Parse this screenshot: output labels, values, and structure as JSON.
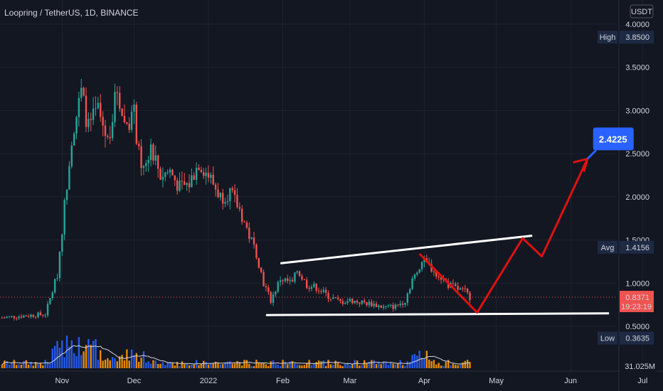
{
  "title": "Loopring / TetherUS, 1D, BINANCE",
  "currency": "USDT",
  "colors": {
    "background": "#131722",
    "up": "#26a69a",
    "down": "#ef5350",
    "volume_up": "#2962ff",
    "volume_down": "#ff9800",
    "pattern_lines": "#ffffff",
    "projection": "#e01010",
    "target_badge": "#2962ff",
    "price_badge": "#ef5350",
    "label_bg": "#1e2a44"
  },
  "chart_data": {
    "type": "candlestick",
    "symbol": "Loopring / TetherUS",
    "interval": "1D",
    "exchange": "BINANCE",
    "y_axis": {
      "unit": "USDT",
      "ylim": [
        0.2,
        4.2
      ],
      "ticks": [
        "4.0000",
        "3.5000",
        "3.0000",
        "2.5000",
        "2.0000",
        "1.5000",
        "1.0000",
        "0.5000"
      ],
      "tick_values": [
        4.0,
        3.5,
        3.0,
        2.5,
        2.0,
        1.5,
        1.0,
        0.5
      ]
    },
    "x_axis": {
      "ticks": [
        "Nov",
        "Dec",
        "2022",
        "Feb",
        "Mar",
        "Apr",
        "May",
        "Jun",
        "Jul"
      ],
      "tick_dates": [
        "2021-11-01",
        "2021-12-01",
        "2022-01-01",
        "2022-02-01",
        "2022-03-01",
        "2022-04-01",
        "2022-05-01",
        "2022-06-01",
        "2022-07-01"
      ],
      "range": [
        "2021-10-07",
        "2022-07-03"
      ]
    },
    "close_path": [
      [
        "2021-10-07",
        0.6
      ],
      [
        "2021-10-15",
        0.62
      ],
      [
        "2021-10-25",
        0.64
      ],
      [
        "2021-10-30",
        1.1
      ],
      [
        "2021-11-02",
        1.9
      ],
      [
        "2021-11-05",
        2.7
      ],
      [
        "2021-11-09",
        3.2
      ],
      [
        "2021-11-12",
        2.8
      ],
      [
        "2021-11-16",
        3.0
      ],
      [
        "2021-11-20",
        2.65
      ],
      [
        "2021-11-24",
        3.25
      ],
      [
        "2021-11-27",
        2.85
      ],
      [
        "2021-12-01",
        2.95
      ],
      [
        "2021-12-04",
        2.25
      ],
      [
        "2021-12-08",
        2.6
      ],
      [
        "2021-12-12",
        2.25
      ],
      [
        "2021-12-16",
        2.3
      ],
      [
        "2021-12-20",
        2.1
      ],
      [
        "2021-12-24",
        2.15
      ],
      [
        "2021-12-28",
        2.4
      ],
      [
        "2022-01-01",
        2.25
      ],
      [
        "2022-01-06",
        2.0
      ],
      [
        "2022-01-10",
        2.05
      ],
      [
        "2022-01-14",
        1.85
      ],
      [
        "2022-01-18",
        1.55
      ],
      [
        "2022-01-21",
        1.35
      ],
      [
        "2022-01-24",
        1.0
      ],
      [
        "2022-01-27",
        0.8
      ],
      [
        "2022-01-31",
        1.05
      ],
      [
        "2022-02-05",
        1.0
      ],
      [
        "2022-02-07",
        1.15
      ],
      [
        "2022-02-11",
        0.98
      ],
      [
        "2022-02-15",
        0.95
      ],
      [
        "2022-02-20",
        0.85
      ],
      [
        "2022-02-25",
        0.78
      ],
      [
        "2022-03-01",
        0.8
      ],
      [
        "2022-03-05",
        0.78
      ],
      [
        "2022-03-10",
        0.76
      ],
      [
        "2022-03-15",
        0.72
      ],
      [
        "2022-03-20",
        0.73
      ],
      [
        "2022-03-24",
        0.8
      ],
      [
        "2022-03-27",
        1.05
      ],
      [
        "2022-03-31",
        1.25
      ],
      [
        "2022-04-03",
        1.2
      ],
      [
        "2022-04-07",
        1.1
      ],
      [
        "2022-04-11",
        0.98
      ],
      [
        "2022-04-15",
        0.93
      ],
      [
        "2022-04-18",
        0.9
      ],
      [
        "2022-04-20",
        0.84
      ]
    ],
    "volume_scale": "31.025M",
    "stats": {
      "high": "3.8500",
      "avg": "1.4156",
      "low": "0.3635",
      "last_price": "0.8371",
      "countdown": "19:23:19"
    },
    "annotations": {
      "target_label": "2.4225",
      "channel_upper": [
        [
          "2022-01-31",
          1.23
        ],
        [
          "2022-05-16",
          1.55
        ]
      ],
      "channel_lower": [
        [
          "2022-01-25",
          0.63
        ],
        [
          "2022-06-17",
          0.65
        ]
      ],
      "projection_path": [
        [
          "2022-03-30",
          1.34
        ],
        [
          "2022-04-23",
          0.66
        ],
        [
          "2022-05-12",
          1.52
        ],
        [
          "2022-05-20",
          1.31
        ],
        [
          "2022-06-08",
          2.44
        ]
      ]
    }
  }
}
